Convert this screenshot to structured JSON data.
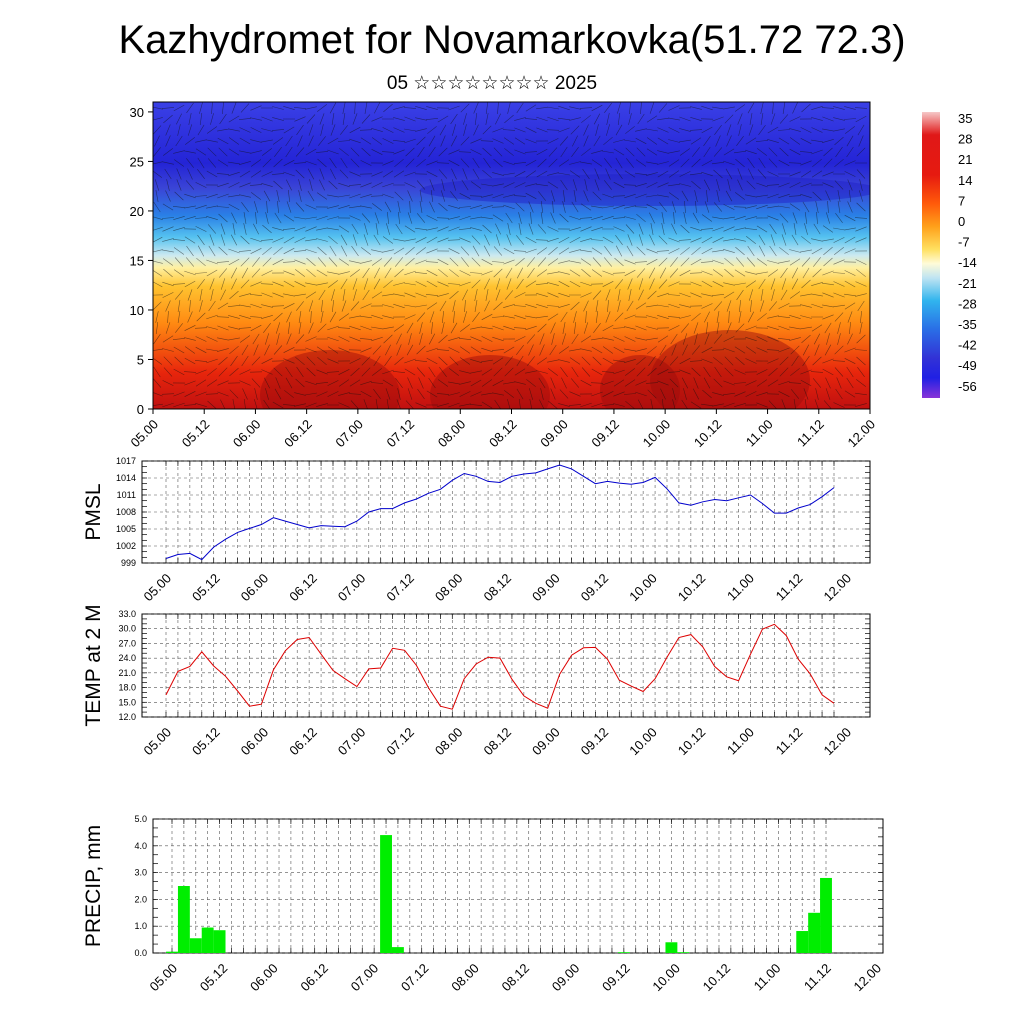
{
  "header": {
    "title": "Kazhydromet for Novamarkovka(51.72 72.3)",
    "subtitle": "05 ☆☆☆☆☆☆☆☆ 2025"
  },
  "chart_data": [
    {
      "type": "heatmap",
      "name": "cross-section",
      "x_ticks": [
        "05.00",
        "05.12",
        "06.00",
        "06.12",
        "07.00",
        "07.12",
        "08.00",
        "08.12",
        "09.00",
        "09.12",
        "10.00",
        "10.12",
        "11.00",
        "11.12",
        "12.00"
      ],
      "y_ticks": [
        "0",
        "5",
        "10",
        "15",
        "20",
        "25",
        "30"
      ],
      "ylim": [
        0,
        31
      ],
      "colorbar_labels": [
        "35",
        "28",
        "21",
        "14",
        "7",
        "0",
        "-7",
        "-14",
        "-21",
        "-28",
        "-35",
        "-42",
        "-49",
        "-56"
      ],
      "colorbar_colors": [
        "#f4b8b8",
        "#e01010",
        "#d81414",
        "#f01a10",
        "#ff6a0a",
        "#ffa31a",
        "#ffdf55",
        "#fffdd0",
        "#b3dff0",
        "#2ab0ee",
        "#2e6ee6",
        "#3a3ad6",
        "#2020e0",
        "#8030d8"
      ]
    },
    {
      "type": "line",
      "name": "pmsl",
      "ylabel": "PMSL",
      "ylim": [
        999,
        1017
      ],
      "y_ticks": [
        "999",
        "1002",
        "1005",
        "1008",
        "1011",
        "1014",
        "1017"
      ],
      "x_ticks": [
        "05.00",
        "05.12",
        "06.00",
        "06.12",
        "07.00",
        "07.12",
        "08.00",
        "08.12",
        "09.00",
        "09.12",
        "10.00",
        "10.12",
        "11.00",
        "11.12",
        "12.00"
      ],
      "line_color": "#0000cc",
      "values": [
        999.8,
        1000.5,
        1000.7,
        999.6,
        1001.8,
        1003.2,
        1004.4,
        1005.1,
        1005.8,
        1007.0,
        1006.4,
        1005.8,
        1005.2,
        1005.6,
        1005.5,
        1005.4,
        1006.4,
        1008.0,
        1008.6,
        1008.6,
        1009.6,
        1010.3,
        1011.3,
        1012.0,
        1013.6,
        1014.8,
        1014.3,
        1013.4,
        1013.2,
        1014.3,
        1014.7,
        1014.9,
        1015.6,
        1016.3,
        1015.6,
        1014.3,
        1013.0,
        1013.4,
        1013.1,
        1012.9,
        1013.2,
        1014.1,
        1012.1,
        1009.6,
        1009.2,
        1009.8,
        1010.2,
        1010.0,
        1010.5,
        1011.0,
        1009.5,
        1007.8,
        1007.8,
        1008.7,
        1009.3,
        1010.7,
        1012.3
      ]
    },
    {
      "type": "line",
      "name": "temp2m",
      "ylabel": "TEMP at 2 M",
      "ylim": [
        12,
        33
      ],
      "y_ticks": [
        "12.0",
        "15.0",
        "18.0",
        "21.0",
        "24.0",
        "27.0",
        "30.0",
        "33.0"
      ],
      "x_ticks": [
        "05.00",
        "05.12",
        "06.00",
        "06.12",
        "07.00",
        "07.12",
        "08.00",
        "08.12",
        "09.00",
        "09.12",
        "10.00",
        "10.12",
        "11.00",
        "11.12",
        "12.00"
      ],
      "line_color": "#dd0000",
      "values": [
        16.5,
        21.3,
        22.3,
        25.3,
        22.4,
        20.3,
        17.3,
        14.2,
        14.6,
        21.6,
        25.5,
        27.8,
        28.2,
        24.8,
        21.5,
        19.8,
        18.2,
        21.8,
        22.0,
        26.0,
        25.6,
        22.5,
        18.0,
        14.2,
        13.6,
        19.8,
        22.8,
        24.2,
        24.0,
        19.7,
        16.3,
        14.8,
        13.8,
        20.7,
        24.6,
        26.1,
        26.2,
        23.8,
        19.5,
        18.3,
        17.2,
        19.8,
        24.2,
        28.2,
        28.8,
        26.3,
        22.3,
        20.2,
        19.4,
        24.8,
        29.9,
        30.9,
        28.6,
        23.8,
        20.8,
        16.5,
        14.8
      ]
    },
    {
      "type": "bar",
      "name": "precip",
      "ylabel": "PRECIP, mm",
      "ylim": [
        0,
        5
      ],
      "y_ticks": [
        "0.0",
        "1.0",
        "2.0",
        "3.0",
        "4.0",
        "5.0"
      ],
      "x_ticks": [
        "05.00",
        "05.12",
        "06.00",
        "06.12",
        "07.00",
        "07.12",
        "08.00",
        "08.12",
        "09.00",
        "09.12",
        "10.00",
        "10.12",
        "11.00",
        "11.12",
        "12.00"
      ],
      "bar_color": "#00ee00",
      "values": [
        0.05,
        2.5,
        0.55,
        0.95,
        0.85,
        0,
        0,
        0,
        0,
        0,
        0,
        0,
        0,
        0,
        0,
        0,
        0,
        0,
        4.4,
        0.22,
        0,
        0,
        0,
        0,
        0,
        0,
        0,
        0,
        0,
        0,
        0,
        0,
        0,
        0,
        0,
        0,
        0,
        0,
        0.03,
        0,
        0,
        0,
        0.4,
        0.03,
        0,
        0,
        0,
        0,
        0,
        0,
        0,
        0,
        0,
        0.82,
        1.5,
        2.8
      ]
    }
  ]
}
